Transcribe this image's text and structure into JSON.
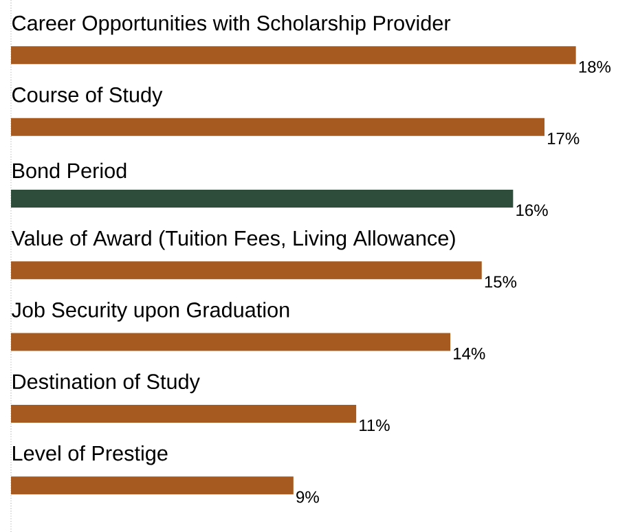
{
  "chart_data": {
    "type": "bar",
    "orientation": "horizontal",
    "categories": [
      "Career Opportunities with Scholarship Provider",
      "Course of Study",
      "Bond Period",
      "Value of Award (Tuition Fees, Living Allowance)",
      "Job Security upon Graduation",
      "Destination of Study",
      "Level of Prestige"
    ],
    "values": [
      18,
      17,
      16,
      15,
      14,
      11,
      9
    ],
    "colors": [
      "#a65a1f",
      "#a65a1f",
      "#2e4d3b",
      "#a65a1f",
      "#a65a1f",
      "#a65a1f",
      "#a65a1f"
    ],
    "value_labels": [
      "18%",
      "17%",
      "16%",
      "15%",
      "14%",
      "11%",
      "9%"
    ]
  }
}
